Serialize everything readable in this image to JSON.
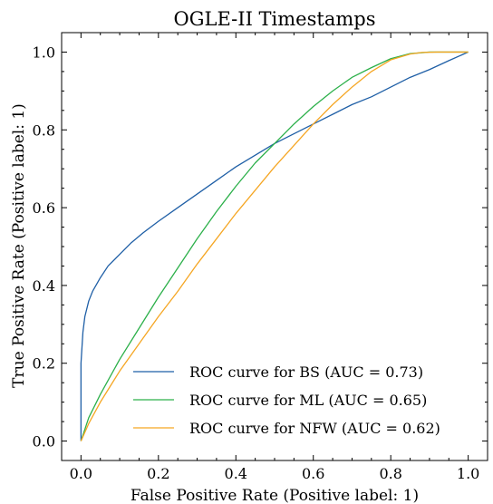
{
  "chart_data": {
    "type": "line",
    "title": "OGLE-II Timestamps",
    "xlabel": "False Positive Rate (Positive label: 1)",
    "ylabel": "True Positive Rate (Positive label: 1)",
    "xlim": [
      -0.05,
      1.05
    ],
    "ylim": [
      -0.05,
      1.05
    ],
    "xticks": [
      0.0,
      0.2,
      0.4,
      0.6,
      0.8,
      1.0
    ],
    "yticks": [
      0.0,
      0.2,
      0.4,
      0.6,
      0.8,
      1.0
    ],
    "xtick_labels": [
      "0.0",
      "0.2",
      "0.4",
      "0.6",
      "0.8",
      "1.0"
    ],
    "ytick_labels": [
      "0.0",
      "0.2",
      "0.4",
      "0.6",
      "0.8",
      "1.0"
    ],
    "grid": false,
    "legend_position": "bottom-right",
    "series": [
      {
        "name": "ROC curve for BS (AUC = 0.73)",
        "color": "#1f5fa6",
        "x": [
          0.0,
          0.0,
          0.005,
          0.01,
          0.02,
          0.03,
          0.05,
          0.07,
          0.1,
          0.13,
          0.16,
          0.2,
          0.25,
          0.3,
          0.35,
          0.4,
          0.45,
          0.5,
          0.55,
          0.6,
          0.65,
          0.7,
          0.75,
          0.8,
          0.85,
          0.9,
          0.95,
          1.0
        ],
        "y": [
          0.0,
          0.2,
          0.28,
          0.32,
          0.36,
          0.385,
          0.42,
          0.45,
          0.48,
          0.51,
          0.535,
          0.565,
          0.6,
          0.635,
          0.67,
          0.705,
          0.735,
          0.765,
          0.79,
          0.815,
          0.84,
          0.865,
          0.885,
          0.91,
          0.935,
          0.955,
          0.978,
          1.0
        ]
      },
      {
        "name": "ROC curve for ML (AUC = 0.65)",
        "color": "#2cb04a",
        "x": [
          0.0,
          0.02,
          0.05,
          0.1,
          0.15,
          0.2,
          0.25,
          0.3,
          0.35,
          0.4,
          0.45,
          0.5,
          0.55,
          0.6,
          0.65,
          0.7,
          0.75,
          0.8,
          0.85,
          0.9,
          0.95,
          1.0
        ],
        "y": [
          0.0,
          0.06,
          0.12,
          0.21,
          0.29,
          0.37,
          0.445,
          0.52,
          0.59,
          0.655,
          0.715,
          0.765,
          0.815,
          0.86,
          0.9,
          0.935,
          0.96,
          0.983,
          0.996,
          1.0,
          1.0,
          1.0
        ]
      },
      {
        "name": "ROC curve for NFW (AUC = 0.62)",
        "color": "#f5a623",
        "x": [
          0.0,
          0.02,
          0.05,
          0.1,
          0.15,
          0.2,
          0.25,
          0.3,
          0.35,
          0.4,
          0.45,
          0.5,
          0.55,
          0.6,
          0.65,
          0.7,
          0.75,
          0.8,
          0.85,
          0.88,
          0.92,
          1.0
        ],
        "y": [
          0.0,
          0.045,
          0.1,
          0.18,
          0.25,
          0.32,
          0.385,
          0.455,
          0.52,
          0.585,
          0.645,
          0.705,
          0.76,
          0.815,
          0.865,
          0.91,
          0.95,
          0.98,
          0.995,
          0.999,
          1.0,
          1.0
        ]
      }
    ]
  }
}
